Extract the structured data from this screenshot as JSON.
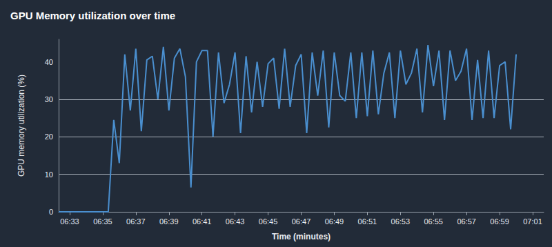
{
  "chart_data": {
    "type": "line",
    "title": "GPU Memory utilization over time",
    "x_label": "Time (minutes)",
    "y_label": "GPU memory utilization (%)",
    "categories": [
      null,
      null,
      "06:33",
      null,
      null,
      null,
      null,
      null,
      "06:35",
      null,
      null,
      null,
      null,
      null,
      "06:37",
      null,
      null,
      null,
      null,
      null,
      "06:39",
      null,
      null,
      null,
      null,
      null,
      "06:41",
      null,
      null,
      null,
      null,
      null,
      "06:43",
      null,
      null,
      null,
      null,
      null,
      "06:45",
      null,
      null,
      null,
      null,
      null,
      "06:47",
      null,
      null,
      null,
      null,
      null,
      "06:49",
      null,
      null,
      null,
      null,
      null,
      "06:51",
      null,
      null,
      null,
      null,
      null,
      "06:53",
      null,
      null,
      null,
      null,
      null,
      "06:55",
      null,
      null,
      null,
      null,
      null,
      "06:57",
      null,
      null,
      null,
      null,
      null,
      "06:59",
      null,
      null,
      null,
      null,
      null,
      "07:01",
      null,
      null
    ],
    "values": [
      0,
      0,
      0,
      0,
      0,
      0,
      0,
      0,
      0,
      0,
      24.5,
      13,
      42,
      27,
      43.5,
      21.5,
      40.5,
      41.5,
      30,
      44,
      27,
      41,
      43.5,
      36,
      6.5,
      40,
      43,
      43,
      20,
      42.5,
      29,
      34,
      42.5,
      21,
      41.5,
      26.5,
      40,
      28,
      39.5,
      41,
      27.5,
      43.5,
      28,
      39,
      42,
      21,
      42.5,
      31,
      43,
      22.5,
      42.5,
      31,
      29.5,
      42.5,
      25,
      42.5,
      25.5,
      43,
      26,
      37,
      42.5,
      25,
      43,
      34,
      37,
      43.5,
      26.5,
      44.5,
      33.5,
      43,
      24.5,
      43,
      35,
      37.5,
      43.5,
      24.5,
      40.5,
      25,
      43,
      25,
      39,
      40,
      22,
      42,
      null,
      null,
      null,
      null,
      null
    ],
    "color": "#4a8fcf",
    "ylim": [
      0,
      46
    ],
    "yticks": [
      0,
      10,
      20,
      30,
      40
    ],
    "grid": true
  }
}
